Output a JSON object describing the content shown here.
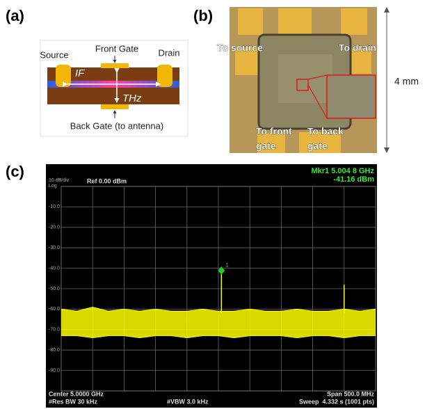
{
  "panel_a": {
    "label": "(a)",
    "source": "Source",
    "front_gate": "Front Gate",
    "drain": "Drain",
    "if": "IF",
    "thz": "THz",
    "back_gate": "Back Gate (to antenna)"
  },
  "panel_b": {
    "label": "(b)",
    "to_source": "To source",
    "to_drain": "To drain",
    "to_front_gate": [
      "To front",
      "gate"
    ],
    "to_back_gate": [
      "To back",
      "gate"
    ],
    "size": "4 mm"
  },
  "panel_c": {
    "label": "(c)"
  },
  "chart_data": {
    "type": "line",
    "scale": "10 dB/div",
    "log": "Log",
    "reference": "Ref 0.00 dBm",
    "marker_readout": [
      "Mkr1 5.004 8 GHz",
      "-41.16 dBm"
    ],
    "footer": {
      "center": "Center 5.0000 GHz",
      "res_bw": "#Res BW 30 kHz",
      "vbw": "#VBW 3.0 kHz",
      "span": "Span 500.0 MHz",
      "sweep": "Sweep  4.332 s (1001 pts)"
    },
    "ylim": [
      -100,
      0
    ],
    "yticks": [
      {
        "value": -10,
        "label": "-10.0"
      },
      {
        "value": -20,
        "label": "-20.0"
      },
      {
        "value": -30,
        "label": "-30.0"
      },
      {
        "value": -40,
        "label": "-40.0"
      },
      {
        "value": -50,
        "label": "-50.0"
      },
      {
        "value": -60,
        "label": "-60.0"
      },
      {
        "value": -70,
        "label": "-70.0"
      },
      {
        "value": -80,
        "label": "-80.0"
      },
      {
        "value": -90,
        "label": "-90.0"
      }
    ],
    "xlim": [
      4.75,
      5.25
    ],
    "xticks": [
      4.75,
      4.8,
      4.85,
      4.9,
      4.95,
      5.0,
      5.05,
      5.1,
      5.15,
      5.2,
      5.25
    ],
    "grid": true,
    "trace": {
      "color": "#ffff00",
      "x": [
        4.75,
        4.775,
        4.8,
        4.825,
        4.85,
        4.875,
        4.9,
        4.925,
        4.95,
        4.975,
        5.0,
        5.025,
        5.05,
        5.075,
        5.1,
        5.125,
        5.15,
        5.175,
        5.2,
        5.225,
        5.25
      ],
      "upper": [
        -60,
        -61,
        -59,
        -61,
        -60,
        -61,
        -60,
        -61,
        -61,
        -60,
        -61,
        -61,
        -60,
        -61,
        -61,
        -60,
        -61,
        -61,
        -60,
        -61,
        -60
      ],
      "lower": [
        -73,
        -73,
        -74,
        -73,
        -73,
        -74,
        -73,
        -73,
        -74,
        -73,
        -73,
        -74,
        -73,
        -73,
        -73,
        -74,
        -73,
        -73,
        -74,
        -73,
        -73
      ]
    },
    "peak": {
      "x": 5.0048,
      "value": -41.16,
      "label": "1",
      "color": "#22cc22"
    },
    "spur": {
      "x": 5.2,
      "value": -48
    }
  }
}
